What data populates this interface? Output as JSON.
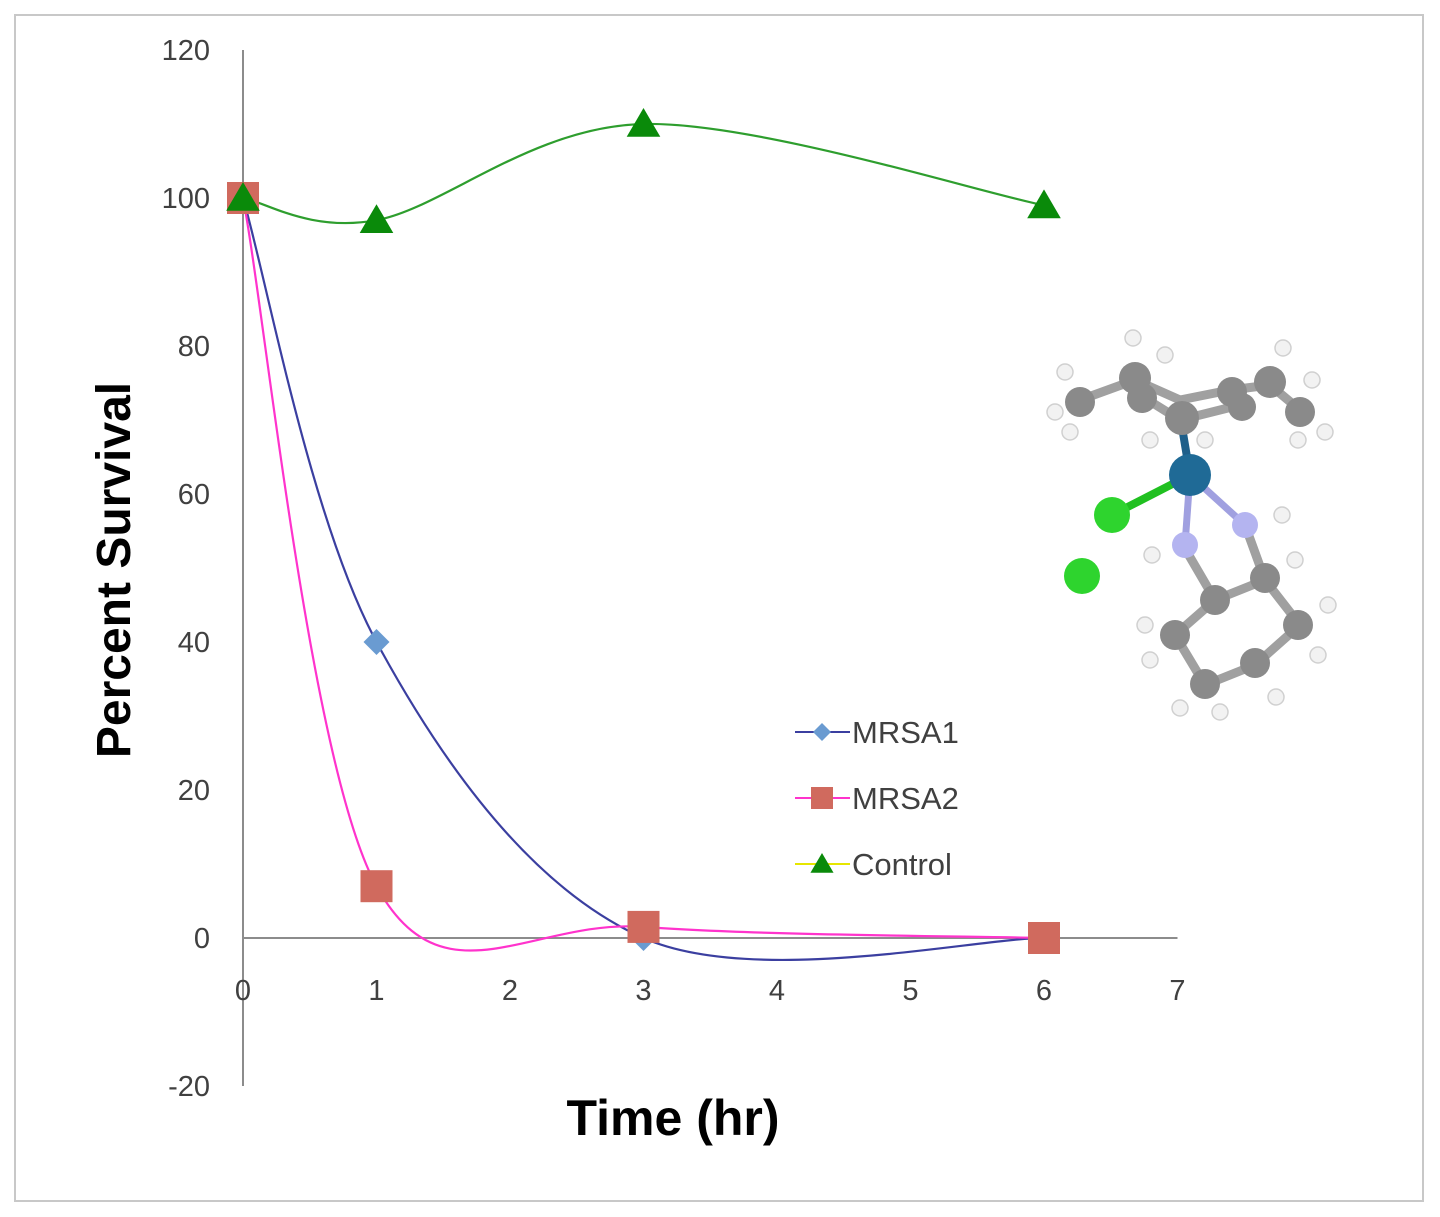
{
  "chart_data": {
    "type": "line",
    "xlabel": "Time (hr)",
    "ylabel": "Percent Survival",
    "xlim": [
      0,
      7
    ],
    "ylim": [
      -20,
      120
    ],
    "x_ticks": [
      "0",
      "1",
      "2",
      "3",
      "4",
      "5",
      "6",
      "7"
    ],
    "y_ticks": [
      "120",
      "100",
      "80",
      "60",
      "40",
      "20",
      "0",
      "-20"
    ],
    "smoothed": true,
    "legend_position": "center-right",
    "series": [
      {
        "name": "MRSA1",
        "marker": "diamond",
        "line_color": "#3b3fa0",
        "marker_color": "#6a9bd1",
        "x": [
          0,
          1,
          3,
          6
        ],
        "y": [
          100,
          40,
          0,
          0
        ]
      },
      {
        "name": "MRSA2",
        "marker": "square",
        "line_color": "#ff33cc",
        "marker_color": "#d06a5e",
        "x": [
          0,
          1,
          3,
          6
        ],
        "y": [
          100,
          7,
          1.5,
          0
        ]
      },
      {
        "name": "Control",
        "marker": "triangle",
        "line_color": "#2e9e2e",
        "marker_color": "#0a8a0a",
        "legend_line_color": "#e6e600",
        "x": [
          0,
          1,
          3,
          6
        ],
        "y": [
          100,
          97,
          110,
          99
        ]
      }
    ]
  },
  "inset": {
    "icon": "molecular-structure-icon"
  }
}
